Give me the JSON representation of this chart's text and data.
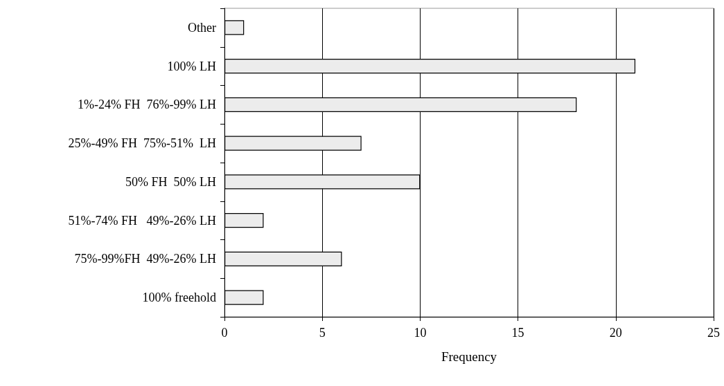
{
  "chart_data": {
    "type": "bar",
    "orientation": "horizontal",
    "xlabel": "Frequency",
    "categories": [
      "Other",
      "100% LH",
      "1%-24% FH  76%-99% LH",
      "25%-49% FH  75%-51%  LH",
      "50% FH  50% LH",
      "51%-74% FH   49%-26% LH",
      "75%-99%FH  49%-26% LH",
      "100% freehold"
    ],
    "values": [
      1,
      21,
      18,
      7,
      10,
      2,
      6,
      2
    ],
    "color": "#ececec",
    "xlim": [
      0,
      25
    ],
    "xticks": [
      0,
      5,
      10,
      15,
      20,
      25
    ],
    "grid": "x"
  }
}
